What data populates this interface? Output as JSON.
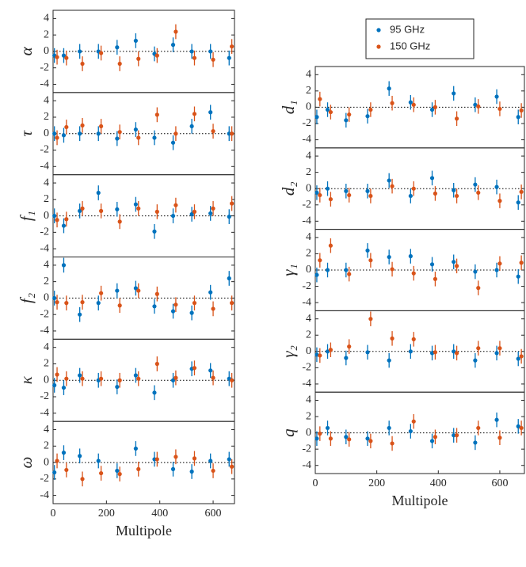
{
  "chart_data": [
    {
      "type": "scatter",
      "ylabel": "α",
      "ylim": [
        -5,
        5
      ],
      "yticks": [
        -4,
        -2,
        0,
        2,
        4
      ],
      "xlim": [
        0,
        680
      ],
      "series": [
        {
          "name": "95 GHz",
          "color": "#0072bd",
          "x": [
            5,
            40,
            100,
            170,
            240,
            310,
            380,
            450,
            520,
            590,
            660
          ],
          "values": [
            -0.5,
            -0.5,
            0,
            0,
            0.5,
            1.3,
            -0.3,
            0.8,
            0,
            0,
            -0.8
          ],
          "errors": [
            0.9,
            0.9,
            0.9,
            0.9,
            0.9,
            0.9,
            0.9,
            0.9,
            0.9,
            0.9,
            0.9
          ]
        },
        {
          "name": "150 GHz",
          "color": "#d95319",
          "x": [
            15,
            50,
            110,
            180,
            250,
            320,
            390,
            460,
            530,
            600,
            670
          ],
          "values": [
            -0.7,
            -0.8,
            -1.5,
            -0.2,
            -1.5,
            -0.9,
            -0.5,
            2.4,
            -0.8,
            -1.0,
            0.6
          ],
          "errors": [
            0.9,
            0.9,
            0.9,
            0.9,
            0.9,
            0.9,
            0.9,
            0.9,
            0.9,
            0.9,
            0.9
          ]
        }
      ]
    },
    {
      "type": "scatter",
      "ylabel": "τ",
      "ylim": [
        -5,
        5
      ],
      "yticks": [
        -4,
        -2,
        0,
        2,
        4
      ],
      "xlim": [
        0,
        680
      ],
      "series": [
        {
          "name": "95 GHz",
          "color": "#0072bd",
          "x": [
            5,
            40,
            100,
            170,
            240,
            310,
            380,
            450,
            520,
            590,
            660
          ],
          "values": [
            0,
            -0.2,
            0,
            0,
            -0.6,
            0.5,
            -0.5,
            -1.1,
            0.9,
            2.6,
            0
          ],
          "errors": [
            0.9,
            0.9,
            0.9,
            0.9,
            0.9,
            0.9,
            0.9,
            0.9,
            0.9,
            0.9,
            0.9
          ]
        },
        {
          "name": "150 GHz",
          "color": "#d95319",
          "x": [
            15,
            50,
            110,
            180,
            250,
            320,
            390,
            460,
            530,
            600,
            670
          ],
          "values": [
            -0.5,
            0.8,
            1.0,
            0.9,
            0.2,
            -0.5,
            2.3,
            0,
            2.4,
            0.3,
            0
          ],
          "errors": [
            0.9,
            0.9,
            0.9,
            0.9,
            0.9,
            0.9,
            0.9,
            0.9,
            0.9,
            0.9,
            0.9
          ]
        }
      ]
    },
    {
      "type": "scatter",
      "ylabel": "f₁",
      "ylim": [
        -5,
        5
      ],
      "yticks": [
        -4,
        -2,
        0,
        2,
        4
      ],
      "xlim": [
        0,
        680
      ],
      "series": [
        {
          "name": "95 GHz",
          "color": "#0072bd",
          "x": [
            5,
            40,
            100,
            170,
            240,
            310,
            380,
            450,
            520,
            590,
            660
          ],
          "values": [
            0,
            -1.2,
            0.6,
            2.8,
            0.8,
            1.4,
            -1.9,
            0,
            0.2,
            0.3,
            -0.1
          ],
          "errors": [
            0.9,
            0.9,
            0.9,
            0.9,
            0.9,
            0.9,
            0.9,
            0.9,
            0.9,
            0.9,
            0.9
          ]
        },
        {
          "name": "150 GHz",
          "color": "#d95319",
          "x": [
            15,
            50,
            110,
            180,
            250,
            320,
            390,
            460,
            530,
            600,
            670
          ],
          "values": [
            -0.5,
            -0.4,
            0.9,
            0.6,
            -0.7,
            0.9,
            0.5,
            1.3,
            0.5,
            0.9,
            1.5
          ],
          "errors": [
            0.9,
            0.9,
            0.9,
            0.9,
            0.9,
            0.9,
            0.9,
            0.9,
            0.9,
            0.9,
            0.9
          ]
        }
      ]
    },
    {
      "type": "scatter",
      "ylabel": "f₂",
      "ylim": [
        -5,
        5
      ],
      "yticks": [
        -4,
        -2,
        0,
        2,
        4
      ],
      "xlim": [
        0,
        680
      ],
      "series": [
        {
          "name": "95 GHz",
          "color": "#0072bd",
          "x": [
            5,
            40,
            100,
            170,
            240,
            310,
            380,
            450,
            520,
            590,
            660
          ],
          "values": [
            0,
            4.0,
            -2.0,
            -0.6,
            0.9,
            1.2,
            -1.0,
            -1.6,
            -1.8,
            0.7,
            2.4
          ],
          "errors": [
            0.9,
            0.9,
            0.9,
            0.9,
            0.9,
            0.9,
            0.9,
            0.9,
            0.9,
            0.9,
            0.9
          ]
        },
        {
          "name": "150 GHz",
          "color": "#d95319",
          "x": [
            15,
            50,
            110,
            180,
            250,
            320,
            390,
            460,
            530,
            600,
            670
          ],
          "values": [
            -0.5,
            -0.6,
            -0.5,
            0.6,
            -0.9,
            0.9,
            0.5,
            -0.8,
            -0.6,
            -1.3,
            -0.6
          ],
          "errors": [
            0.9,
            0.9,
            0.9,
            0.9,
            0.9,
            0.9,
            0.9,
            0.9,
            0.9,
            0.9,
            0.9
          ]
        }
      ]
    },
    {
      "type": "scatter",
      "ylabel": "κ",
      "ylim": [
        -5,
        5
      ],
      "yticks": [
        -4,
        -2,
        0,
        2,
        4
      ],
      "xlim": [
        0,
        680
      ],
      "series": [
        {
          "name": "95 GHz",
          "color": "#0072bd",
          "x": [
            5,
            40,
            100,
            170,
            240,
            310,
            380,
            450,
            520,
            590,
            660
          ],
          "values": [
            -0.6,
            -0.9,
            0.6,
            0,
            -0.8,
            0.6,
            -1.5,
            0,
            1.4,
            1.2,
            0.2
          ],
          "errors": [
            0.9,
            0.9,
            0.9,
            0.9,
            0.9,
            0.9,
            0.9,
            0.9,
            0.9,
            0.9,
            0.9
          ]
        },
        {
          "name": "150 GHz",
          "color": "#d95319",
          "x": [
            15,
            50,
            110,
            180,
            250,
            320,
            390,
            460,
            530,
            600,
            670
          ],
          "values": [
            0.7,
            0.2,
            0.2,
            0.2,
            0,
            0.2,
            2.0,
            0.3,
            1.5,
            0.3,
            0
          ],
          "errors": [
            0.9,
            0.9,
            0.9,
            0.9,
            0.9,
            0.9,
            0.9,
            0.9,
            0.9,
            0.9,
            0.9
          ]
        }
      ]
    },
    {
      "type": "scatter",
      "ylabel": "ω",
      "ylim": [
        -5,
        5
      ],
      "yticks": [
        -4,
        -2,
        0,
        2,
        4
      ],
      "xlim": [
        0,
        680
      ],
      "xticks": [
        0,
        200,
        400,
        600
      ],
      "xlabel": "Multipole",
      "series": [
        {
          "name": "95 GHz",
          "color": "#0072bd",
          "x": [
            5,
            40,
            100,
            170,
            240,
            310,
            380,
            450,
            520,
            590,
            660
          ],
          "values": [
            -1.2,
            1.2,
            0.8,
            0.2,
            -1.0,
            1.7,
            0.4,
            -0.8,
            -1.1,
            0.2,
            0.4
          ],
          "errors": [
            0.9,
            0.9,
            0.9,
            0.9,
            0.9,
            0.9,
            0.9,
            0.9,
            0.9,
            0.9,
            0.9
          ]
        },
        {
          "name": "150 GHz",
          "color": "#d95319",
          "x": [
            15,
            50,
            110,
            180,
            250,
            320,
            390,
            460,
            530,
            600,
            670
          ],
          "values": [
            0.2,
            -0.9,
            -2.0,
            -1.3,
            -1.4,
            -0.8,
            0.4,
            0.7,
            0.5,
            -1.0,
            -0.5
          ],
          "errors": [
            0.9,
            0.9,
            0.9,
            0.9,
            0.9,
            0.9,
            0.9,
            0.9,
            0.9,
            0.9,
            0.9
          ]
        }
      ]
    },
    {
      "type": "scatter",
      "ylabel": "d₁",
      "ylim": [
        -5,
        5
      ],
      "yticks": [
        -4,
        -2,
        0,
        2,
        4
      ],
      "xlim": [
        0,
        680
      ],
      "legend": "outside-top",
      "series": [
        {
          "name": "95 GHz",
          "color": "#0072bd",
          "x": [
            5,
            40,
            100,
            170,
            240,
            310,
            380,
            450,
            520,
            590,
            660
          ],
          "values": [
            -1.2,
            -0.3,
            -1.6,
            -1.1,
            2.3,
            0.6,
            -0.3,
            1.7,
            0.3,
            1.3,
            -1.2
          ],
          "errors": [
            0.9,
            0.9,
            0.9,
            0.9,
            0.9,
            0.9,
            0.9,
            0.9,
            0.9,
            0.9,
            0.9
          ]
        },
        {
          "name": "150 GHz",
          "color": "#d95319",
          "x": [
            15,
            50,
            110,
            180,
            250,
            320,
            390,
            460,
            530,
            600,
            670
          ],
          "values": [
            1.0,
            -0.6,
            -0.9,
            -0.3,
            0.5,
            0.3,
            0,
            -1.4,
            0.1,
            -0.2,
            -0.4
          ],
          "errors": [
            0.9,
            0.9,
            0.9,
            0.9,
            0.9,
            0.9,
            0.9,
            0.9,
            0.9,
            0.9,
            0.9
          ]
        }
      ]
    },
    {
      "type": "scatter",
      "ylabel": "d₂",
      "ylim": [
        -5,
        5
      ],
      "yticks": [
        -4,
        -2,
        0,
        2,
        4
      ],
      "xlim": [
        0,
        680
      ],
      "series": [
        {
          "name": "95 GHz",
          "color": "#0072bd",
          "x": [
            5,
            40,
            100,
            170,
            240,
            310,
            380,
            450,
            520,
            590,
            660
          ],
          "values": [
            -0.5,
            0,
            -0.3,
            -0.3,
            1.0,
            -0.9,
            1.3,
            -0.2,
            0.5,
            0.2,
            -1.7
          ],
          "errors": [
            0.9,
            0.9,
            0.9,
            0.9,
            0.9,
            0.9,
            0.9,
            0.9,
            0.9,
            0.9,
            0.9
          ]
        },
        {
          "name": "150 GHz",
          "color": "#d95319",
          "x": [
            15,
            50,
            110,
            180,
            250,
            320,
            390,
            460,
            530,
            600,
            670
          ],
          "values": [
            -0.8,
            -1.3,
            -0.8,
            -0.9,
            0.3,
            0,
            -0.6,
            -0.9,
            -0.5,
            -1.5,
            -0.4
          ],
          "errors": [
            0.9,
            0.9,
            0.9,
            0.9,
            0.9,
            0.9,
            0.9,
            0.9,
            0.9,
            0.9,
            0.9
          ]
        }
      ]
    },
    {
      "type": "scatter",
      "ylabel": "γ₁",
      "ylim": [
        -5,
        5
      ],
      "yticks": [
        -4,
        -2,
        0,
        2,
        4
      ],
      "xlim": [
        0,
        680
      ],
      "series": [
        {
          "name": "95 GHz",
          "color": "#0072bd",
          "x": [
            5,
            40,
            100,
            170,
            240,
            310,
            380,
            450,
            520,
            590,
            660
          ],
          "values": [
            -0.6,
            0,
            0,
            2.4,
            1.6,
            1.7,
            0.7,
            1.0,
            -0.2,
            0,
            -0.8
          ],
          "errors": [
            0.9,
            0.9,
            0.9,
            0.9,
            0.9,
            0.9,
            0.9,
            0.9,
            0.9,
            0.9,
            0.9
          ]
        },
        {
          "name": "150 GHz",
          "color": "#d95319",
          "x": [
            15,
            50,
            110,
            180,
            250,
            320,
            390,
            460,
            530,
            600,
            670
          ],
          "values": [
            1.2,
            3.0,
            -0.5,
            1.2,
            0.1,
            -0.4,
            -1.1,
            0.5,
            -2.2,
            0.8,
            0.9
          ],
          "errors": [
            0.9,
            0.9,
            0.9,
            0.9,
            0.9,
            0.9,
            0.9,
            0.9,
            0.9,
            0.9,
            0.9
          ]
        }
      ]
    },
    {
      "type": "scatter",
      "ylabel": "γ₂",
      "ylim": [
        -5,
        5
      ],
      "yticks": [
        -4,
        -2,
        0,
        2,
        4
      ],
      "xlim": [
        0,
        680
      ],
      "series": [
        {
          "name": "95 GHz",
          "color": "#0072bd",
          "x": [
            5,
            40,
            100,
            170,
            240,
            310,
            380,
            450,
            520,
            590,
            660
          ],
          "values": [
            -0.4,
            0,
            -0.8,
            -0.1,
            -1.1,
            0,
            -0.2,
            0,
            -1.1,
            -0.2,
            -0.9
          ],
          "errors": [
            0.9,
            0.9,
            0.9,
            0.9,
            0.9,
            0.9,
            0.9,
            0.9,
            0.9,
            0.9,
            0.9
          ]
        },
        {
          "name": "150 GHz",
          "color": "#d95319",
          "x": [
            15,
            50,
            110,
            180,
            250,
            320,
            390,
            460,
            530,
            600,
            670
          ],
          "values": [
            -0.5,
            0.2,
            0.6,
            4.0,
            1.6,
            1.5,
            -0.1,
            -0.2,
            0.4,
            0.4,
            -0.6
          ],
          "errors": [
            0.9,
            0.9,
            0.9,
            0.9,
            0.9,
            0.9,
            0.9,
            0.9,
            0.9,
            0.9,
            0.9
          ]
        }
      ]
    },
    {
      "type": "scatter",
      "ylabel": "q",
      "ylim": [
        -5,
        5
      ],
      "yticks": [
        -4,
        -2,
        0,
        2,
        4
      ],
      "xlim": [
        0,
        680
      ],
      "xticks": [
        0,
        200,
        400,
        600
      ],
      "xlabel": "Multipole",
      "series": [
        {
          "name": "95 GHz",
          "color": "#0072bd",
          "x": [
            5,
            40,
            100,
            170,
            240,
            310,
            380,
            450,
            520,
            590,
            660
          ],
          "values": [
            -0.7,
            0.6,
            -0.5,
            -0.7,
            0.6,
            0.2,
            -1.0,
            -0.3,
            -1.2,
            1.6,
            0.8
          ],
          "errors": [
            0.9,
            0.9,
            0.9,
            0.9,
            0.9,
            0.9,
            0.9,
            0.9,
            0.9,
            0.9,
            0.9
          ]
        },
        {
          "name": "150 GHz",
          "color": "#d95319",
          "x": [
            15,
            50,
            110,
            180,
            250,
            320,
            390,
            460,
            530,
            600,
            670
          ],
          "values": [
            -0.1,
            -0.7,
            -0.8,
            -1.0,
            -1.3,
            1.4,
            -0.5,
            -0.3,
            0.6,
            -0.6,
            0.6
          ],
          "errors": [
            0.9,
            0.9,
            0.9,
            0.9,
            0.9,
            0.9,
            0.9,
            0.9,
            0.9,
            0.9,
            0.9
          ]
        }
      ]
    }
  ]
}
